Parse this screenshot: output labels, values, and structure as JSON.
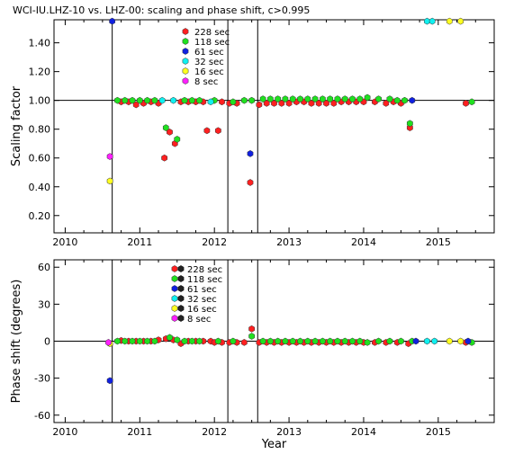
{
  "title": "WCI-IU.LHZ-10 vs. LHZ-00: scaling and phase shift, c>0.995",
  "colors": {
    "228": "#ff2020",
    "118": "#20e020",
    "61": "#1020e0",
    "32": "#10f0f0",
    "16": "#ffff20",
    "8": "#ff20ff"
  },
  "legend": [
    {
      "period": "228",
      "label": "228  sec"
    },
    {
      "period": "118",
      "label": "118  sec"
    },
    {
      "period": "61",
      "label": "61  sec"
    },
    {
      "period": "32",
      "label": "32  sec"
    },
    {
      "period": "16",
      "label": "16  sec"
    },
    {
      "period": "8",
      "label": "8  sec"
    }
  ],
  "chart_data": [
    {
      "type": "scatter",
      "title": "WCI-IU.LHZ-10 vs. LHZ-00: scaling and phase shift, c>0.995",
      "xlabel": "",
      "ylabel": "Scaling factor",
      "xlim": [
        2009.85,
        2015.75
      ],
      "ylim": [
        0.08,
        1.56
      ],
      "xticks": [
        "2010",
        "2011",
        "2012",
        "2013",
        "2014",
        "2015"
      ],
      "yticks": [
        "0.20",
        "0.40",
        "0.60",
        "0.80",
        "1.00",
        "1.20",
        "1.40"
      ],
      "ytick_values": [
        0.2,
        0.4,
        0.6,
        0.8,
        1.0,
        1.2,
        1.4
      ],
      "reference_line": 1.0,
      "event_lines": [
        2010.63,
        2012.18,
        2012.58
      ],
      "grid": false,
      "legend_position": "top-left",
      "series": [
        {
          "name": "228 sec",
          "points": [
            [
              2010.75,
              0.99
            ],
            [
              2010.85,
              0.99
            ],
            [
              2010.95,
              0.97
            ],
            [
              2011.05,
              0.98
            ],
            [
              2011.15,
              0.99
            ],
            [
              2011.25,
              0.98
            ],
            [
              2011.33,
              0.6
            ],
            [
              2011.4,
              0.78
            ],
            [
              2011.47,
              0.7
            ],
            [
              2011.55,
              0.99
            ],
            [
              2011.65,
              0.99
            ],
            [
              2011.75,
              0.99
            ],
            [
              2011.85,
              0.99
            ],
            [
              2011.9,
              0.79
            ],
            [
              2012.05,
              0.79
            ],
            [
              2012.1,
              0.99
            ],
            [
              2012.2,
              0.98
            ],
            [
              2012.3,
              0.98
            ],
            [
              2012.48,
              0.43
            ],
            [
              2012.6,
              0.97
            ],
            [
              2012.7,
              0.98
            ],
            [
              2012.8,
              0.98
            ],
            [
              2012.9,
              0.98
            ],
            [
              2013.0,
              0.98
            ],
            [
              2013.1,
              0.99
            ],
            [
              2013.2,
              0.99
            ],
            [
              2013.3,
              0.98
            ],
            [
              2013.4,
              0.98
            ],
            [
              2013.5,
              0.98
            ],
            [
              2013.6,
              0.98
            ],
            [
              2013.7,
              0.99
            ],
            [
              2013.8,
              0.99
            ],
            [
              2013.9,
              0.99
            ],
            [
              2014.0,
              0.99
            ],
            [
              2014.15,
              0.99
            ],
            [
              2014.3,
              0.98
            ],
            [
              2014.4,
              0.99
            ],
            [
              2014.5,
              0.98
            ],
            [
              2014.62,
              0.81
            ],
            [
              2015.37,
              0.98
            ]
          ]
        },
        {
          "name": "118 sec",
          "points": [
            [
              2010.7,
              1.0
            ],
            [
              2010.8,
              1.0
            ],
            [
              2010.9,
              1.0
            ],
            [
              2011.0,
              1.0
            ],
            [
              2011.1,
              1.0
            ],
            [
              2011.2,
              1.0
            ],
            [
              2011.35,
              0.81
            ],
            [
              2011.5,
              0.73
            ],
            [
              2011.6,
              1.0
            ],
            [
              2011.7,
              1.0
            ],
            [
              2011.8,
              1.0
            ],
            [
              2012.0,
              1.0
            ],
            [
              2012.25,
              0.99
            ],
            [
              2012.4,
              1.0
            ],
            [
              2012.5,
              1.0
            ],
            [
              2012.65,
              1.01
            ],
            [
              2012.75,
              1.01
            ],
            [
              2012.85,
              1.01
            ],
            [
              2012.95,
              1.01
            ],
            [
              2013.05,
              1.01
            ],
            [
              2013.15,
              1.01
            ],
            [
              2013.25,
              1.01
            ],
            [
              2013.35,
              1.01
            ],
            [
              2013.45,
              1.01
            ],
            [
              2013.55,
              1.01
            ],
            [
              2013.65,
              1.01
            ],
            [
              2013.75,
              1.01
            ],
            [
              2013.85,
              1.01
            ],
            [
              2013.95,
              1.01
            ],
            [
              2014.05,
              1.02
            ],
            [
              2014.2,
              1.01
            ],
            [
              2014.35,
              1.01
            ],
            [
              2014.45,
              1.0
            ],
            [
              2014.55,
              1.0
            ],
            [
              2014.62,
              0.84
            ],
            [
              2015.45,
              0.99
            ]
          ]
        },
        {
          "name": "61 sec",
          "points": [
            [
              2010.63,
              1.55
            ],
            [
              2012.48,
              0.63
            ],
            [
              2014.65,
              1.0
            ]
          ]
        },
        {
          "name": "32 sec",
          "points": [
            [
              2011.3,
              1.0
            ],
            [
              2011.45,
              1.0
            ],
            [
              2011.95,
              0.99
            ],
            [
              2014.85,
              1.55
            ],
            [
              2014.92,
              1.55
            ]
          ]
        },
        {
          "name": "16 sec",
          "points": [
            [
              2010.6,
              0.44
            ],
            [
              2015.15,
              1.55
            ],
            [
              2015.3,
              1.55
            ]
          ]
        },
        {
          "name": "8 sec",
          "points": [
            [
              2010.6,
              0.61
            ]
          ]
        }
      ]
    },
    {
      "type": "scatter",
      "title": "",
      "xlabel": "Year",
      "ylabel": "Phase shift (degrees)",
      "xlim": [
        2009.85,
        2015.75
      ],
      "ylim": [
        -66,
        66
      ],
      "xticks": [
        "2010",
        "2011",
        "2012",
        "2013",
        "2014",
        "2015"
      ],
      "yticks": [
        "-60",
        "-30",
        "0",
        "30",
        "60"
      ],
      "ytick_values": [
        -60,
        -30,
        0,
        30,
        60
      ],
      "reference_line": 0,
      "event_lines": [
        2010.63,
        2012.18,
        2012.58
      ],
      "grid": false,
      "legend_position": "top-left",
      "series": [
        {
          "name": "228 sec",
          "points": [
            [
              2010.75,
              0.5
            ],
            [
              2010.85,
              0
            ],
            [
              2010.95,
              0
            ],
            [
              2011.05,
              0
            ],
            [
              2011.15,
              0
            ],
            [
              2011.25,
              1
            ],
            [
              2011.35,
              2
            ],
            [
              2011.45,
              1
            ],
            [
              2011.55,
              -2
            ],
            [
              2011.65,
              0
            ],
            [
              2011.75,
              0
            ],
            [
              2011.85,
              0
            ],
            [
              2011.95,
              0
            ],
            [
              2012.0,
              -1
            ],
            [
              2012.1,
              -1
            ],
            [
              2012.2,
              -1
            ],
            [
              2012.3,
              -1
            ],
            [
              2012.4,
              -1
            ],
            [
              2012.5,
              10
            ],
            [
              2012.6,
              -1
            ],
            [
              2012.7,
              -1
            ],
            [
              2012.8,
              -1
            ],
            [
              2012.9,
              -1
            ],
            [
              2013.0,
              -1
            ],
            [
              2013.1,
              -1
            ],
            [
              2013.2,
              -1
            ],
            [
              2013.3,
              -1
            ],
            [
              2013.4,
              -1
            ],
            [
              2013.5,
              -1
            ],
            [
              2013.6,
              -1
            ],
            [
              2013.7,
              -1
            ],
            [
              2013.8,
              -1
            ],
            [
              2013.9,
              -1
            ],
            [
              2014.0,
              -1
            ],
            [
              2014.15,
              -1
            ],
            [
              2014.3,
              -1
            ],
            [
              2014.45,
              -1
            ],
            [
              2014.6,
              -2
            ],
            [
              2015.37,
              -1
            ]
          ]
        },
        {
          "name": "118 sec",
          "points": [
            [
              2010.7,
              0
            ],
            [
              2010.8,
              0
            ],
            [
              2010.9,
              0
            ],
            [
              2011.0,
              0
            ],
            [
              2011.1,
              0
            ],
            [
              2011.2,
              0
            ],
            [
              2011.4,
              3
            ],
            [
              2011.5,
              1
            ],
            [
              2011.6,
              0
            ],
            [
              2011.7,
              0
            ],
            [
              2011.8,
              0
            ],
            [
              2012.05,
              0
            ],
            [
              2012.25,
              0
            ],
            [
              2012.5,
              4
            ],
            [
              2012.65,
              0
            ],
            [
              2012.75,
              0
            ],
            [
              2012.85,
              0
            ],
            [
              2012.95,
              0
            ],
            [
              2013.05,
              0
            ],
            [
              2013.15,
              0
            ],
            [
              2013.25,
              0
            ],
            [
              2013.35,
              0
            ],
            [
              2013.45,
              0
            ],
            [
              2013.55,
              0
            ],
            [
              2013.65,
              0
            ],
            [
              2013.75,
              0
            ],
            [
              2013.85,
              0
            ],
            [
              2013.95,
              0
            ],
            [
              2014.05,
              -1
            ],
            [
              2014.2,
              0
            ],
            [
              2014.35,
              0
            ],
            [
              2014.5,
              0
            ],
            [
              2014.65,
              0
            ],
            [
              2015.45,
              -1
            ]
          ]
        },
        {
          "name": "61 sec",
          "points": [
            [
              2010.6,
              -32
            ],
            [
              2014.7,
              0
            ],
            [
              2015.4,
              0
            ]
          ]
        },
        {
          "name": "32 sec",
          "points": [
            [
              2014.85,
              0
            ],
            [
              2014.95,
              0
            ]
          ]
        },
        {
          "name": "16 sec",
          "points": [
            [
              2010.6,
              -2
            ],
            [
              2015.15,
              0
            ],
            [
              2015.3,
              0
            ]
          ]
        },
        {
          "name": "8 sec",
          "points": [
            [
              2010.58,
              -1
            ]
          ]
        }
      ]
    }
  ]
}
